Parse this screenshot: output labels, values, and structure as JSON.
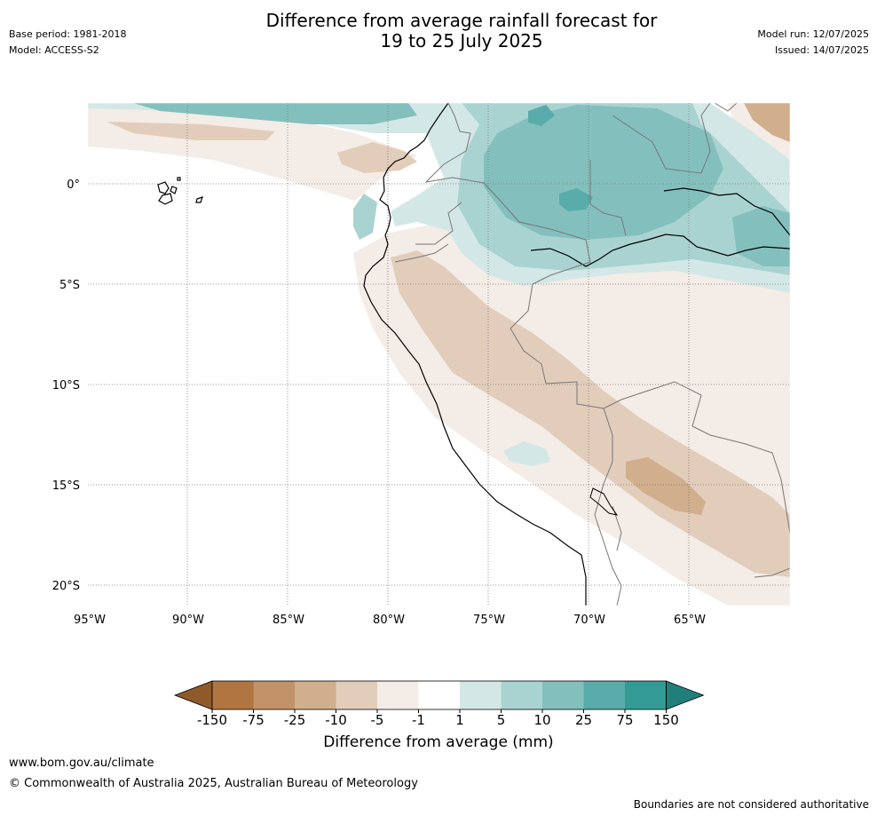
{
  "title_line1": "Difference from average rainfall forecast for",
  "title_line2": "19 to 25 July 2025",
  "base_period": "Base period: 1981-2018",
  "model": "Model: ACCESS-S2",
  "model_run": "Model run: 12/07/2025",
  "issued": "Issued: 14/07/2025",
  "map": {
    "lat_labels": [
      "0°",
      "5°S",
      "10°S",
      "15°S",
      "20°S"
    ],
    "lon_labels": [
      "95°W",
      "90°W",
      "85°W",
      "80°W",
      "75°W",
      "70°W",
      "65°W"
    ],
    "colors": {
      "lt150": "#8e5a2a",
      "m75": "#b07540",
      "m25": "#c29268",
      "m10": "#d1ae8c",
      "m5": "#e2cdbb",
      "m1": "#f4ece6",
      "neutral": "#ffffff",
      "p1": "#d3e8e6",
      "p5": "#a9d3d1",
      "p10": "#83c0bd",
      "p25": "#59aca9",
      "p75": "#339a96",
      "gt150": "#217e7a"
    }
  },
  "colorbar": {
    "ticks": [
      "-150",
      "-75",
      "-25",
      "-10",
      "-5",
      "-1",
      "1",
      "5",
      "10",
      "25",
      "75",
      "150"
    ],
    "colors": [
      "#b07540",
      "#c29268",
      "#d1ae8c",
      "#e2cdbb",
      "#f4ece6",
      "#ffffff",
      "#d3e8e6",
      "#a9d3d1",
      "#83c0bd",
      "#59aca9",
      "#339a96"
    ],
    "low_extend_color": "#8e5a2a",
    "high_extend_color": "#217e7a",
    "label": "Difference from average (mm)"
  },
  "footer": {
    "url": "www.bom.gov.au/climate",
    "copyright": "© Commonwealth of Australia 2025, Australian Bureau of Meteorology",
    "note": "Boundaries are not considered authoritative"
  }
}
